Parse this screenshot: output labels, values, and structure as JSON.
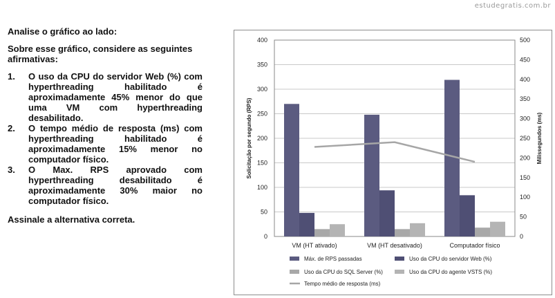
{
  "watermark": "estudegratis.com.br",
  "question": {
    "intro": "Analise o gráfico ao lado:",
    "prompt": "Sobre esse gráfico, considere as seguintes afirmativas:",
    "items": [
      {
        "num": "1.",
        "text": "O uso da CPU do servidor Web (%) com hyperthreading habilitado é aproximadamente 45% menor do que uma VM com hyperthreading desabilitado."
      },
      {
        "num": "2.",
        "text": "O tempo médio de resposta (ms) com hyperthreading habilitado é aproximadamente 15% menor no computador físico."
      },
      {
        "num": "3.",
        "text": "O Max. RPS aprovado com hyperthreading desabilitado é aproximadamente 30% maior no computador físico."
      }
    ],
    "closing": "Assinale a alternativa correta."
  },
  "chart_data": {
    "type": "bar",
    "categories": [
      "VM (HT ativado)",
      "VM (HT desativado)",
      "Computador físico"
    ],
    "ylabel": "Solicitação por segundo (RPS)",
    "y2label": "Milissegundos (ms)",
    "ylim": [
      0,
      400
    ],
    "y2lim": [
      0,
      500
    ],
    "yticks": [
      0,
      50,
      100,
      150,
      200,
      250,
      300,
      350,
      400
    ],
    "y2ticks": [
      0,
      50,
      100,
      150,
      200,
      250,
      300,
      350,
      400,
      450,
      500
    ],
    "grid": true,
    "legend_position": "bottom",
    "series": [
      {
        "name": "Máx. de RPS passadas",
        "type": "bar",
        "axis": "left",
        "color": "#5b5b80",
        "values": [
          270,
          248,
          319
        ]
      },
      {
        "name": "Uso da CPU do servidor Web (%)",
        "type": "bar",
        "axis": "left",
        "color": "#4f4f74",
        "values": [
          48,
          94,
          84
        ]
      },
      {
        "name": "Uso da CPU do SQL Server (%)",
        "type": "bar",
        "axis": "left",
        "color": "#a8a8a8",
        "values": [
          15,
          15,
          18
        ]
      },
      {
        "name": "Uso da CPU do agente VSTS (%)",
        "type": "bar",
        "axis": "left",
        "color": "#b4b4b4",
        "values": [
          25,
          27,
          30
        ]
      },
      {
        "name": "Tempo médio de resposta (ms)",
        "type": "line",
        "axis": "right",
        "color": "#a6a6a6",
        "values": [
          228,
          240,
          190
        ]
      }
    ]
  }
}
